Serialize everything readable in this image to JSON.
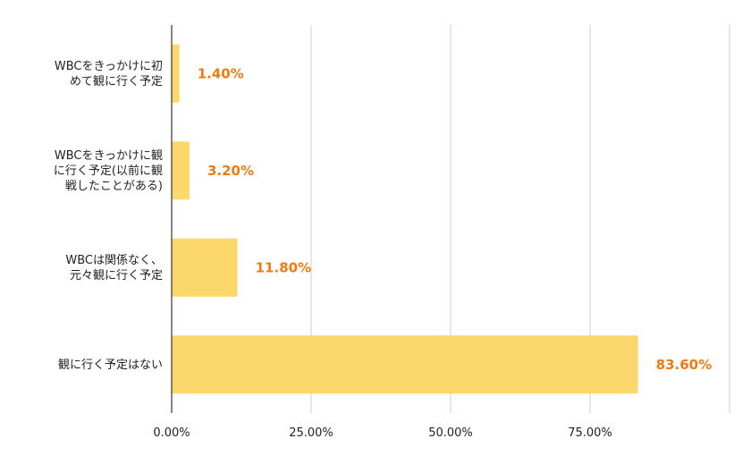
{
  "chart_data": {
    "type": "bar",
    "orientation": "horizontal",
    "categories": [
      [
        "WBCをきっかけに初",
        "めて観に行く予定"
      ],
      [
        "WBCをきっかけに観",
        "に行く予定(以前に観",
        "戦したことがある)"
      ],
      [
        "WBCは関係なく、",
        "元々観に行く予定"
      ],
      [
        "観に行く予定はない"
      ]
    ],
    "values": [
      1.4,
      3.2,
      11.8,
      83.6
    ],
    "data_labels": [
      "1.40%",
      "3.20%",
      "11.80%",
      "83.60%"
    ],
    "xlim": [
      0,
      100
    ],
    "xticks": [
      0,
      25,
      50,
      75
    ],
    "xtick_labels": [
      "0.00%",
      "25.00%",
      "50.00%",
      "75.00%"
    ],
    "grid": "vertical",
    "title": "",
    "xlabel": "",
    "ylabel": "",
    "colors": {
      "bar": "#fcd76b",
      "data_label": "#f07b12",
      "grid": "#cccccc",
      "axis": "#333333"
    }
  }
}
